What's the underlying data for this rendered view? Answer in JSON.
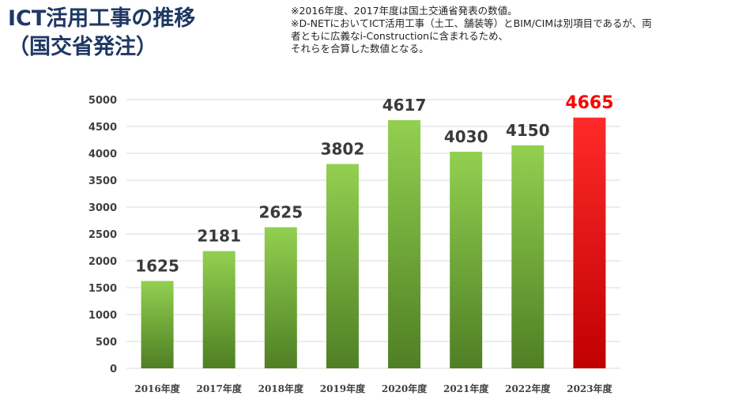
{
  "header": {
    "title_line1": "ICT活用工事の推移",
    "title_line2": "（国交省発注）",
    "notes": [
      "※2016年度、2017年度は国土交通省発表の数値。",
      "※D-NETにおいてICT活用工事（土工、舗装等）とBIM/CIMは別項目であるが、両",
      "者ともに広義なi-Constructionに含まれるため、",
      "それらを合算した数値となる。"
    ]
  },
  "chart_data": {
    "type": "bar",
    "categories": [
      "2016年度",
      "2017年度",
      "2018年度",
      "2019年度",
      "2020年度",
      "2021年度",
      "2022年度",
      "2023年度"
    ],
    "values": [
      1625,
      2181,
      2625,
      3802,
      4617,
      4030,
      4150,
      4665
    ],
    "ylim": [
      0,
      5000
    ],
    "yticks": [
      0,
      500,
      1000,
      1500,
      2000,
      2500,
      3000,
      3500,
      4000,
      4500,
      5000
    ],
    "grid": true,
    "legend": "none",
    "highlight_index": 7,
    "colors": {
      "bar_top": "#92d050",
      "bar_bottom": "#4f7f24",
      "highlight_top": "#ff2a2a",
      "highlight_bottom": "#c00000",
      "label": "#3a3a3a",
      "highlight_label": "#ff0000",
      "grid": "#d9d9d9"
    }
  }
}
